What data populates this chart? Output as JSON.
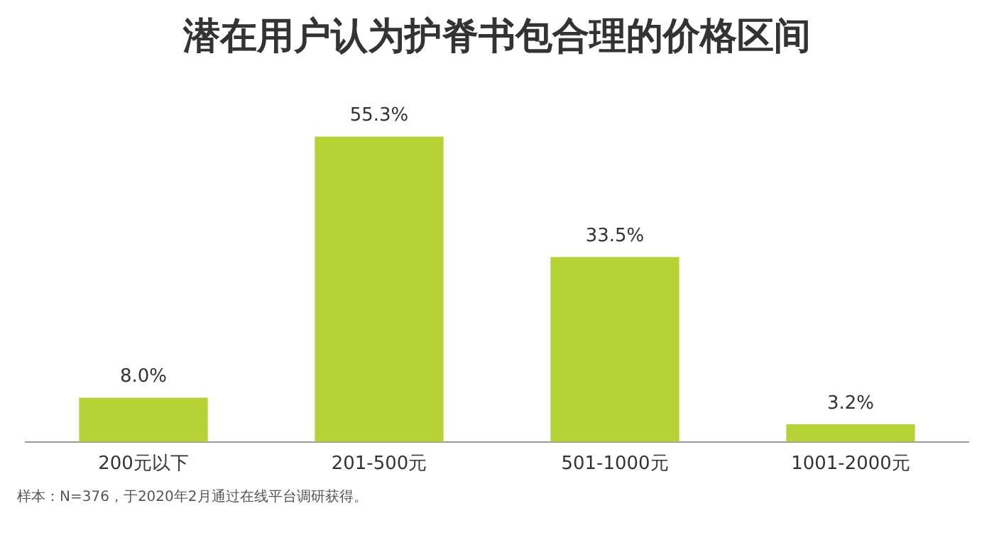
{
  "chart_data": {
    "type": "bar",
    "title": "潜在用户认为护脊书包合理的价格区间",
    "categories": [
      "200元以下",
      "201-500元",
      "501-1000元",
      "1001-2000元"
    ],
    "values": [
      8.0,
      55.3,
      33.5,
      3.2
    ],
    "value_labels": [
      "8.0%",
      "55.3%",
      "33.5%",
      "3.2%"
    ],
    "color": "#b5d334",
    "grid": false,
    "legend": false,
    "annotations": [
      "样本：N=376，于2020年2月通过在线平台调研获得。"
    ]
  }
}
